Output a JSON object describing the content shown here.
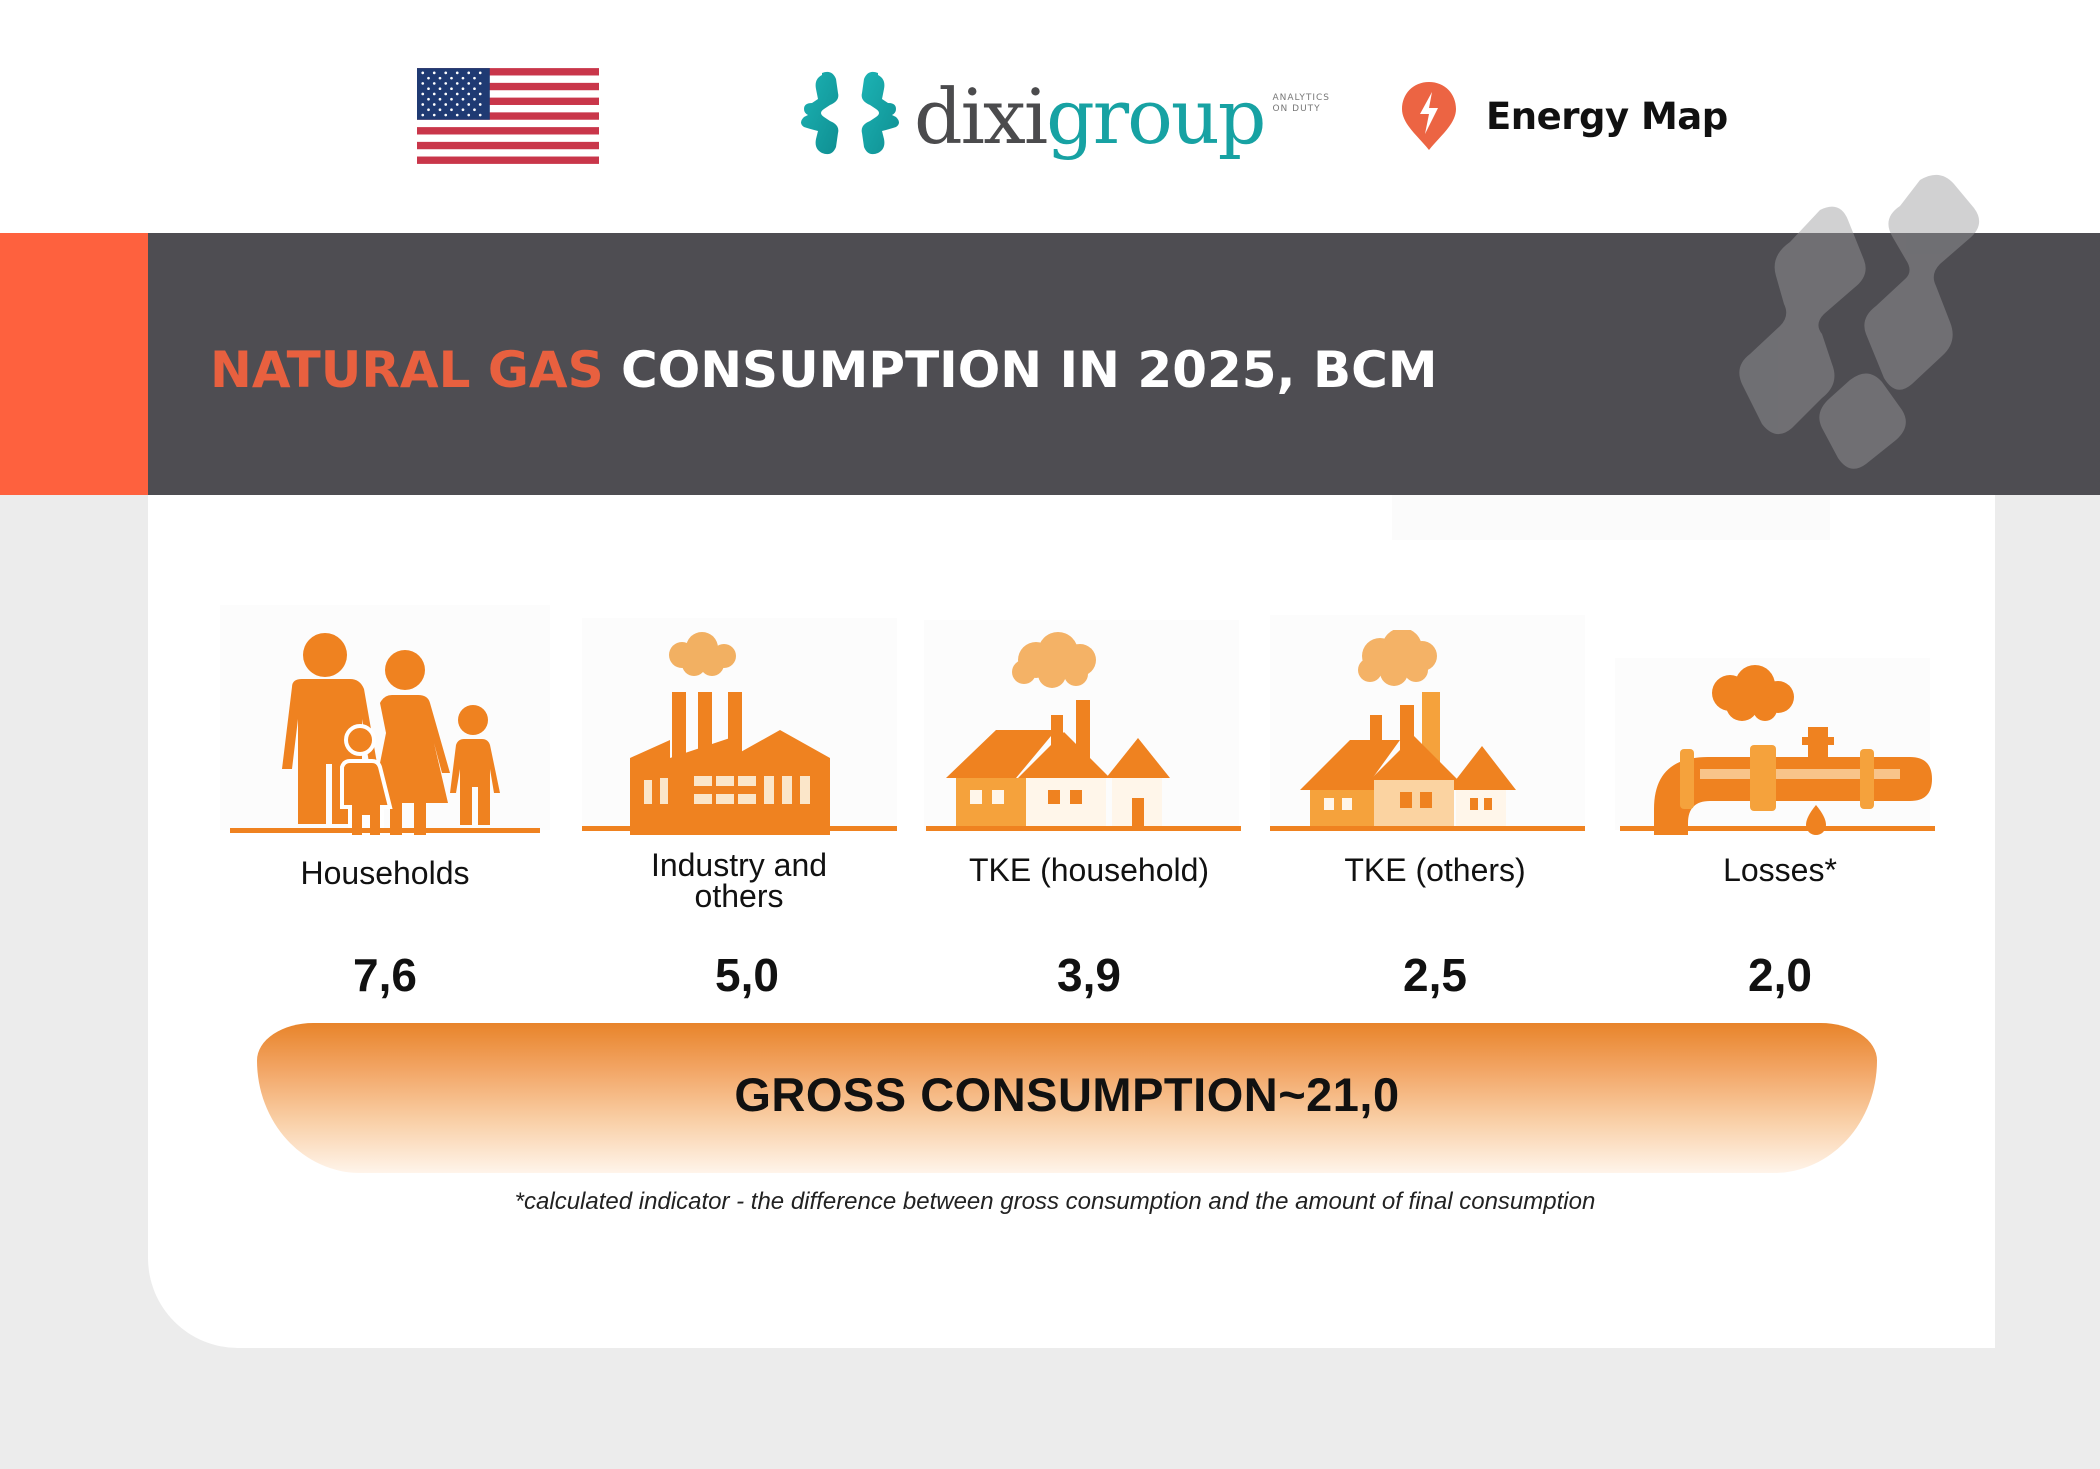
{
  "header": {
    "flag": "us-flag",
    "brand": {
      "word_dark": "dixi",
      "word_teal": "group",
      "tagline_line1": "ANALYTICS",
      "tagline_line2": "ON DUTY"
    },
    "partner": {
      "icon": "lightning-pin-icon",
      "label": "Energy Map"
    }
  },
  "title": {
    "highlight": "NATURAL GAS",
    "rest": "CONSUMPTION IN 2025, BCM"
  },
  "colors": {
    "accent_orange": "#fe613e",
    "title_highlight": "#e8603f",
    "band_dark": "#4e4d52",
    "icon_orange": "#ef8220",
    "teal": "#17a2a3",
    "background": "#ececec"
  },
  "categories": [
    {
      "label": "Households",
      "value": "7,6",
      "icon": "family-icon"
    },
    {
      "label": "Industry and others",
      "value": "5,0",
      "icon": "factory-icon"
    },
    {
      "label": "TKE (household)",
      "value": "3,9",
      "icon": "houses-chimney-icon"
    },
    {
      "label": "TKE (others)",
      "value": "2,5",
      "icon": "buildings-chimney-icon"
    },
    {
      "label": "Losses*",
      "value": "2,0",
      "icon": "leaking-pipe-icon"
    }
  ],
  "total": {
    "label": "GROSS CONSUMPTION~21,0"
  },
  "footnote": "*calculated indicator - the difference between gross consumption and the amount of final consumption",
  "chart_data": {
    "type": "bar",
    "title": "NATURAL GAS CONSUMPTION IN 2025, BCM",
    "categories": [
      "Households",
      "Industry and others",
      "TKE (household)",
      "TKE (others)",
      "Losses*"
    ],
    "values": [
      7.6,
      5.0,
      3.9,
      2.5,
      2.0
    ],
    "unit": "bcm",
    "total": 21.0,
    "total_label": "GROSS CONSUMPTION~21,0",
    "xlabel": "",
    "ylabel": "",
    "annotations": [
      "*calculated indicator - the difference between gross consumption and the amount of final consumption"
    ]
  }
}
